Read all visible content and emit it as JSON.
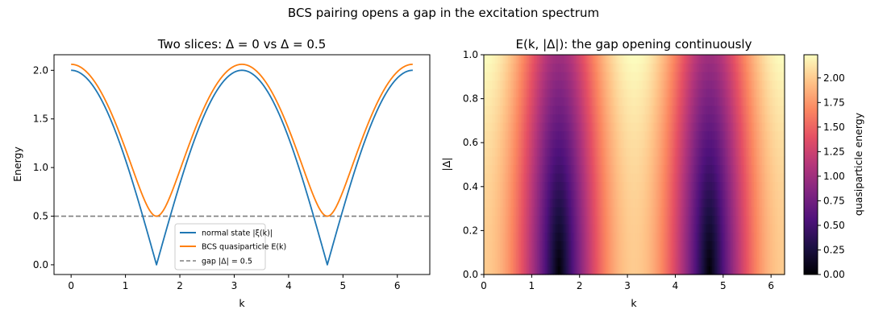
{
  "suptitle": "BCS pairing opens a gap in the excitation spectrum",
  "chart_data": [
    {
      "type": "line",
      "title": "Two slices: Δ = 0 vs Δ = 0.5",
      "xlabel": "k",
      "ylabel": "Energy",
      "xlim": [
        -0.314,
        6.597
      ],
      "ylim": [
        -0.1,
        2.16
      ],
      "xticks": [
        "0",
        "1",
        "2",
        "3",
        "4",
        "5",
        "6"
      ],
      "yticks": [
        "0.0",
        "0.5",
        "1.0",
        "1.5",
        "2.0"
      ],
      "grid": false,
      "legend_position": "lower center",
      "model": {
        "hopping_t": 1.0,
        "gap": 0.5,
        "k_range": [
          0,
          6.2832
        ]
      },
      "series": [
        {
          "name": "normal state |ξ(k)|",
          "color": "#1f77b4",
          "style": "solid",
          "formula": "abs(2*cos(k))"
        },
        {
          "name": "BCS quasiparticle E(k)",
          "color": "#ff7f0e",
          "style": "solid",
          "formula": "sqrt((2*cos(k))^2 + 0.5^2)"
        },
        {
          "name": "gap |Δ| = 0.5",
          "color": "#7f7f7f",
          "style": "dashed",
          "formula": "0.5"
        }
      ],
      "sample_points": {
        "k": [
          0,
          0.785,
          1.571,
          2.356,
          3.142,
          3.927,
          4.712,
          5.498,
          6.283
        ],
        "normal_state": [
          2.0,
          1.414,
          0.0,
          1.414,
          2.0,
          1.414,
          0.0,
          1.414,
          2.0
        ],
        "bcs_quasiparticle": [
          2.062,
          1.5,
          0.5,
          1.5,
          2.062,
          1.5,
          0.5,
          1.5,
          2.062
        ]
      }
    },
    {
      "type": "heatmap",
      "title": "E(k, |Δ|): the gap opening continuously",
      "xlabel": "k",
      "ylabel": "|Δ|",
      "xlim": [
        0,
        6.283
      ],
      "ylim": [
        0,
        1.0
      ],
      "xticks": [
        "0",
        "1",
        "2",
        "3",
        "4",
        "5",
        "6"
      ],
      "yticks": [
        "0.0",
        "0.2",
        "0.4",
        "0.6",
        "0.8",
        "1.0"
      ],
      "colormap": "magma",
      "colorbar": {
        "label": "quasiparticle energy",
        "range": [
          0.0,
          2.236
        ],
        "ticks": [
          "0.00",
          "0.25",
          "0.50",
          "0.75",
          "1.00",
          "1.25",
          "1.50",
          "1.75",
          "2.00"
        ]
      },
      "formula": "sqrt((2*cos(k))^2 + |Δ|^2)"
    }
  ]
}
